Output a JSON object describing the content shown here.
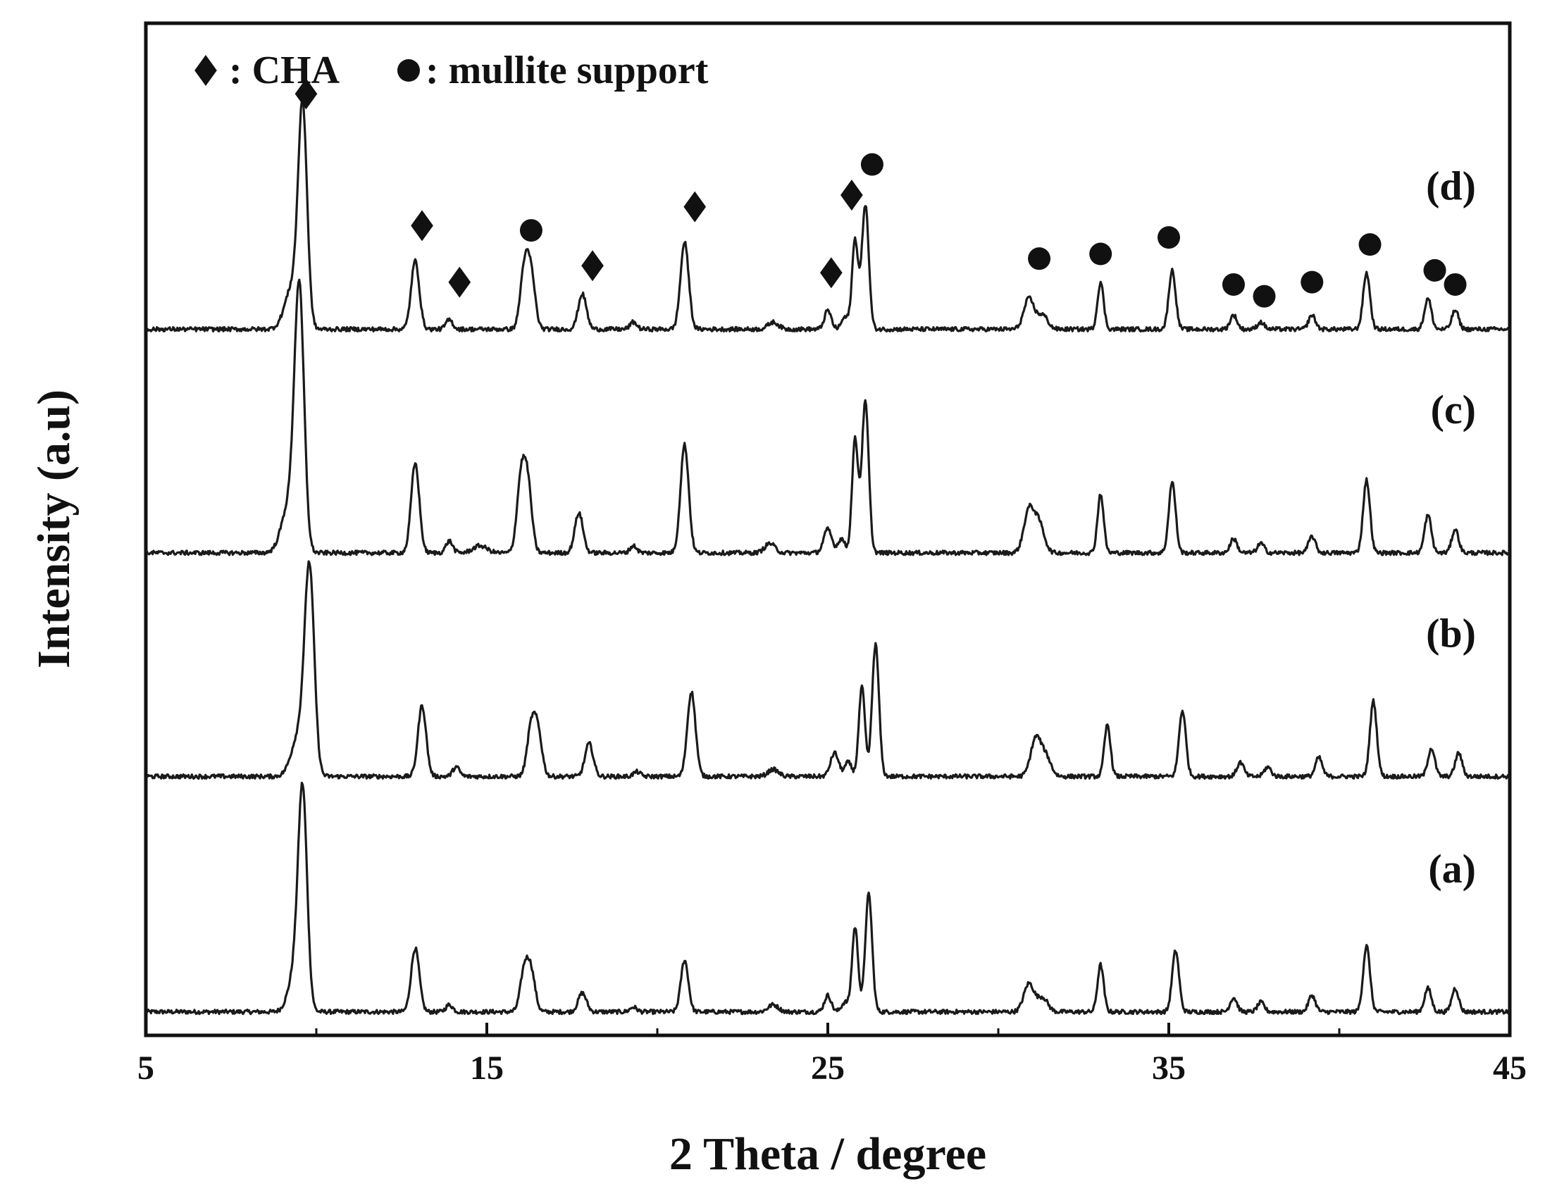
{
  "chart_data": {
    "type": "line",
    "xlabel": "2 Theta / degree",
    "ylabel": "Intensity (a.u)",
    "xlim": [
      5,
      45
    ],
    "ylim": [
      0,
      4.3
    ],
    "xticks": [
      5,
      15,
      25,
      35,
      45
    ],
    "grid": false,
    "legend": {
      "placement": "top-left",
      "entries": [
        {
          "marker": "diamond",
          "text": ": CHA"
        },
        {
          "marker": "circle",
          "text": ": mullite support"
        }
      ]
    },
    "series": [
      {
        "label": "(a)",
        "offset": 0.1,
        "peaks": [
          {
            "x": 9.6,
            "h": 0.86,
            "w": 0.13
          },
          {
            "x": 9.4,
            "h": 0.18,
            "w": 0.2
          },
          {
            "x": 12.9,
            "h": 0.27,
            "w": 0.12
          },
          {
            "x": 13.9,
            "h": 0.03,
            "w": 0.1
          },
          {
            "x": 16.1,
            "h": 0.17,
            "w": 0.12
          },
          {
            "x": 16.3,
            "h": 0.16,
            "w": 0.12
          },
          {
            "x": 17.8,
            "h": 0.08,
            "w": 0.12
          },
          {
            "x": 19.3,
            "h": 0.02,
            "w": 0.1
          },
          {
            "x": 20.8,
            "h": 0.22,
            "w": 0.11
          },
          {
            "x": 23.4,
            "h": 0.03,
            "w": 0.15
          },
          {
            "x": 25.0,
            "h": 0.07,
            "w": 0.1
          },
          {
            "x": 25.5,
            "h": 0.04,
            "w": 0.1
          },
          {
            "x": 25.8,
            "h": 0.36,
            "w": 0.09
          },
          {
            "x": 26.2,
            "h": 0.5,
            "w": 0.1
          },
          {
            "x": 30.9,
            "h": 0.12,
            "w": 0.15
          },
          {
            "x": 31.3,
            "h": 0.06,
            "w": 0.15
          },
          {
            "x": 33.0,
            "h": 0.2,
            "w": 0.09
          },
          {
            "x": 35.2,
            "h": 0.26,
            "w": 0.1
          },
          {
            "x": 36.9,
            "h": 0.06,
            "w": 0.1
          },
          {
            "x": 37.7,
            "h": 0.04,
            "w": 0.1
          },
          {
            "x": 39.2,
            "h": 0.07,
            "w": 0.1
          },
          {
            "x": 40.8,
            "h": 0.28,
            "w": 0.1
          },
          {
            "x": 42.6,
            "h": 0.1,
            "w": 0.1
          },
          {
            "x": 43.4,
            "h": 0.1,
            "w": 0.1
          }
        ]
      },
      {
        "label": "(b)",
        "offset": 1.1,
        "peaks": [
          {
            "x": 9.8,
            "h": 0.84,
            "w": 0.14
          },
          {
            "x": 9.5,
            "h": 0.18,
            "w": 0.22
          },
          {
            "x": 13.1,
            "h": 0.3,
            "w": 0.12
          },
          {
            "x": 14.1,
            "h": 0.04,
            "w": 0.1
          },
          {
            "x": 16.3,
            "h": 0.2,
            "w": 0.12
          },
          {
            "x": 16.5,
            "h": 0.18,
            "w": 0.12
          },
          {
            "x": 18.0,
            "h": 0.14,
            "w": 0.12
          },
          {
            "x": 19.4,
            "h": 0.02,
            "w": 0.1
          },
          {
            "x": 21.0,
            "h": 0.36,
            "w": 0.12
          },
          {
            "x": 23.4,
            "h": 0.03,
            "w": 0.15
          },
          {
            "x": 25.2,
            "h": 0.1,
            "w": 0.12
          },
          {
            "x": 25.6,
            "h": 0.06,
            "w": 0.1
          },
          {
            "x": 26.0,
            "h": 0.38,
            "w": 0.09
          },
          {
            "x": 26.4,
            "h": 0.56,
            "w": 0.1
          },
          {
            "x": 31.1,
            "h": 0.16,
            "w": 0.15
          },
          {
            "x": 31.4,
            "h": 0.08,
            "w": 0.15
          },
          {
            "x": 33.2,
            "h": 0.22,
            "w": 0.09
          },
          {
            "x": 35.4,
            "h": 0.28,
            "w": 0.1
          },
          {
            "x": 37.1,
            "h": 0.06,
            "w": 0.1
          },
          {
            "x": 37.9,
            "h": 0.04,
            "w": 0.1
          },
          {
            "x": 39.4,
            "h": 0.08,
            "w": 0.1
          },
          {
            "x": 41.0,
            "h": 0.32,
            "w": 0.1
          },
          {
            "x": 42.7,
            "h": 0.12,
            "w": 0.1
          },
          {
            "x": 43.5,
            "h": 0.1,
            "w": 0.1
          }
        ]
      },
      {
        "label": "(c)",
        "offset": 2.05,
        "peaks": [
          {
            "x": 9.5,
            "h": 1.08,
            "w": 0.14
          },
          {
            "x": 9.2,
            "h": 0.2,
            "w": 0.22
          },
          {
            "x": 12.9,
            "h": 0.38,
            "w": 0.12
          },
          {
            "x": 13.9,
            "h": 0.05,
            "w": 0.1
          },
          {
            "x": 14.8,
            "h": 0.03,
            "w": 0.2
          },
          {
            "x": 16.0,
            "h": 0.3,
            "w": 0.12
          },
          {
            "x": 16.2,
            "h": 0.28,
            "w": 0.12
          },
          {
            "x": 17.7,
            "h": 0.17,
            "w": 0.12
          },
          {
            "x": 19.3,
            "h": 0.03,
            "w": 0.1
          },
          {
            "x": 20.8,
            "h": 0.46,
            "w": 0.12
          },
          {
            "x": 23.3,
            "h": 0.04,
            "w": 0.15
          },
          {
            "x": 25.0,
            "h": 0.1,
            "w": 0.12
          },
          {
            "x": 25.4,
            "h": 0.06,
            "w": 0.1
          },
          {
            "x": 25.8,
            "h": 0.48,
            "w": 0.09
          },
          {
            "x": 26.1,
            "h": 0.64,
            "w": 0.1
          },
          {
            "x": 30.9,
            "h": 0.18,
            "w": 0.15
          },
          {
            "x": 31.2,
            "h": 0.12,
            "w": 0.15
          },
          {
            "x": 33.0,
            "h": 0.25,
            "w": 0.09
          },
          {
            "x": 35.1,
            "h": 0.3,
            "w": 0.1
          },
          {
            "x": 36.9,
            "h": 0.06,
            "w": 0.1
          },
          {
            "x": 37.7,
            "h": 0.04,
            "w": 0.1
          },
          {
            "x": 39.2,
            "h": 0.07,
            "w": 0.1
          },
          {
            "x": 40.8,
            "h": 0.31,
            "w": 0.1
          },
          {
            "x": 42.6,
            "h": 0.16,
            "w": 0.1
          },
          {
            "x": 43.4,
            "h": 0.1,
            "w": 0.1
          }
        ]
      },
      {
        "label": "(d)",
        "offset": 3.0,
        "peaks": [
          {
            "x": 9.6,
            "h": 0.9,
            "w": 0.13
          },
          {
            "x": 9.3,
            "h": 0.18,
            "w": 0.22
          },
          {
            "x": 12.9,
            "h": 0.29,
            "w": 0.12
          },
          {
            "x": 13.9,
            "h": 0.04,
            "w": 0.1
          },
          {
            "x": 16.1,
            "h": 0.25,
            "w": 0.12
          },
          {
            "x": 16.3,
            "h": 0.22,
            "w": 0.12
          },
          {
            "x": 17.8,
            "h": 0.15,
            "w": 0.12
          },
          {
            "x": 19.3,
            "h": 0.03,
            "w": 0.1
          },
          {
            "x": 20.8,
            "h": 0.37,
            "w": 0.12
          },
          {
            "x": 23.4,
            "h": 0.03,
            "w": 0.15
          },
          {
            "x": 25.0,
            "h": 0.08,
            "w": 0.1
          },
          {
            "x": 25.5,
            "h": 0.05,
            "w": 0.1
          },
          {
            "x": 25.8,
            "h": 0.38,
            "w": 0.09
          },
          {
            "x": 26.1,
            "h": 0.53,
            "w": 0.1
          },
          {
            "x": 30.9,
            "h": 0.13,
            "w": 0.15
          },
          {
            "x": 31.3,
            "h": 0.06,
            "w": 0.15
          },
          {
            "x": 33.0,
            "h": 0.2,
            "w": 0.09
          },
          {
            "x": 35.1,
            "h": 0.25,
            "w": 0.1
          },
          {
            "x": 36.9,
            "h": 0.06,
            "w": 0.1
          },
          {
            "x": 37.7,
            "h": 0.03,
            "w": 0.1
          },
          {
            "x": 39.2,
            "h": 0.06,
            "w": 0.1
          },
          {
            "x": 40.8,
            "h": 0.24,
            "w": 0.1
          },
          {
            "x": 42.6,
            "h": 0.13,
            "w": 0.1
          },
          {
            "x": 43.4,
            "h": 0.08,
            "w": 0.1
          }
        ]
      }
    ],
    "annotations": [
      {
        "marker": "diamond",
        "x": 9.7,
        "y": 4.0
      },
      {
        "marker": "diamond",
        "x": 13.1,
        "y": 3.44
      },
      {
        "marker": "diamond",
        "x": 14.2,
        "y": 3.2
      },
      {
        "marker": "circle",
        "x": 16.3,
        "y": 3.42
      },
      {
        "marker": "diamond",
        "x": 18.1,
        "y": 3.27
      },
      {
        "marker": "diamond",
        "x": 21.1,
        "y": 3.52
      },
      {
        "marker": "diamond",
        "x": 25.1,
        "y": 3.24
      },
      {
        "marker": "diamond",
        "x": 25.7,
        "y": 3.57
      },
      {
        "marker": "circle",
        "x": 26.3,
        "y": 3.7
      },
      {
        "marker": "circle",
        "x": 31.2,
        "y": 3.3
      },
      {
        "marker": "circle",
        "x": 33.0,
        "y": 3.32
      },
      {
        "marker": "circle",
        "x": 35.0,
        "y": 3.39
      },
      {
        "marker": "circle",
        "x": 36.9,
        "y": 3.19
      },
      {
        "marker": "circle",
        "x": 37.8,
        "y": 3.14
      },
      {
        "marker": "circle",
        "x": 39.2,
        "y": 3.2
      },
      {
        "marker": "circle",
        "x": 40.9,
        "y": 3.36
      },
      {
        "marker": "circle",
        "x": 42.8,
        "y": 3.25
      },
      {
        "marker": "circle",
        "x": 43.4,
        "y": 3.19
      }
    ],
    "line_color": "#1a1a1a"
  }
}
